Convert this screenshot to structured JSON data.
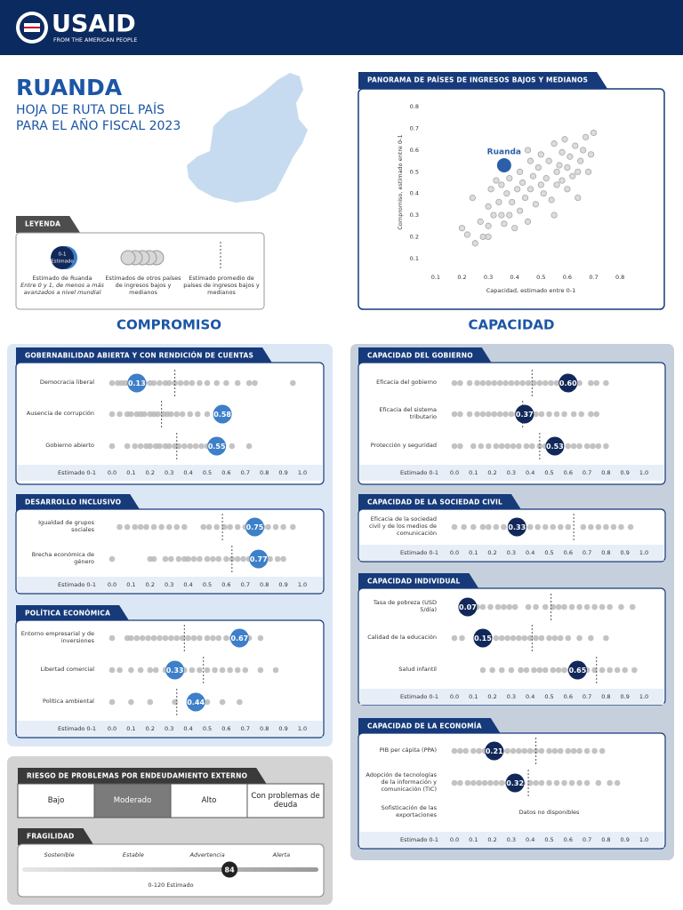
{
  "header": {
    "logo": "USAID",
    "tagline": "FROM THE AMERICAN PEOPLE"
  },
  "title": {
    "country": "RUANDA",
    "line1": "HOJA DE RUTA DEL PAÍS",
    "line2": "PARA EL AÑO FISCAL 2023"
  },
  "legend": {
    "title": "LEYENDA",
    "marker_lines": [
      "0-1",
      "Estimado"
    ],
    "country_caption": "Estimado de Ruanda",
    "country_note": "Entre 0 y 1, de menos a más avanzados a nivel mundial",
    "others_caption": "Estimados de otros países de ingresos bajos y medianos",
    "average_caption": "Estimado promedio de países de ingresos bajos y medianos"
  },
  "sections": {
    "commitment": "COMPROMISO",
    "capacity": "CAPACIDAD"
  },
  "chart_data": [
    {
      "type": "scatter",
      "title": "PANORAMA DE PAÍSES DE INGRESOS BAJOS Y MEDIANOS",
      "x_label": "Capacidad, estimado entre 0-1",
      "y_label": "Compromiso, estimado entre 0-1",
      "xlim": [
        0.07,
        0.83
      ],
      "ylim": [
        0.05,
        0.85
      ],
      "xticks": [
        0.1,
        0.2,
        0.3,
        0.4,
        0.5,
        0.6,
        0.7,
        0.8
      ],
      "yticks": [
        0.1,
        0.2,
        0.3,
        0.4,
        0.5,
        0.6,
        0.7,
        0.8
      ],
      "series": [
        {
          "name": "Ruanda",
          "color": "#2c5fa8",
          "x": [
            0.36
          ],
          "values": [
            0.53
          ]
        },
        {
          "color": "#dcdcdc",
          "x": [
            0.2,
            0.22,
            0.25,
            0.24,
            0.27,
            0.28,
            0.3,
            0.31,
            0.3,
            0.33,
            0.32,
            0.34,
            0.35,
            0.36,
            0.37,
            0.38,
            0.38,
            0.39,
            0.4,
            0.41,
            0.42,
            0.42,
            0.43,
            0.44,
            0.45,
            0.46,
            0.46,
            0.47,
            0.48,
            0.49,
            0.5,
            0.5,
            0.51,
            0.52,
            0.53,
            0.54,
            0.55,
            0.56,
            0.56,
            0.57,
            0.58,
            0.58,
            0.59,
            0.6,
            0.6,
            0.61,
            0.62,
            0.63,
            0.64,
            0.64,
            0.65,
            0.66,
            0.67,
            0.68,
            0.69,
            0.7,
            0.3,
            0.35,
            0.45,
            0.55
          ],
          "values": [
            0.24,
            0.21,
            0.17,
            0.38,
            0.27,
            0.2,
            0.34,
            0.42,
            0.2,
            0.46,
            0.3,
            0.36,
            0.44,
            0.26,
            0.4,
            0.47,
            0.3,
            0.36,
            0.24,
            0.42,
            0.5,
            0.32,
            0.45,
            0.38,
            0.27,
            0.55,
            0.42,
            0.48,
            0.35,
            0.52,
            0.44,
            0.58,
            0.4,
            0.47,
            0.55,
            0.37,
            0.63,
            0.5,
            0.44,
            0.53,
            0.46,
            0.59,
            0.65,
            0.42,
            0.52,
            0.57,
            0.48,
            0.62,
            0.5,
            0.38,
            0.55,
            0.6,
            0.66,
            0.5,
            0.58,
            0.68,
            0.25,
            0.3,
            0.6,
            0.3
          ]
        }
      ]
    },
    {
      "type": "strip",
      "title": "GOBERNABILIDAD ABIERTA Y CON RENDICIÓN DE CUENTAS",
      "color": "#3d7fc8",
      "others_color": "#b8b8b8",
      "axis_label": "Estimado 0-1",
      "xlim": [
        0,
        1
      ],
      "xticks": [
        {
          "value": 0,
          "label": "0.0"
        },
        0.1,
        0.2,
        0.3,
        0.4,
        0.5,
        0.6,
        0.7,
        0.8,
        0.9,
        {
          "value": 1,
          "label": "1.0"
        }
      ],
      "rows": [
        {
          "label": "Democracia liberal",
          "value": 0.13,
          "average": 0.33,
          "others": [
            0.0,
            0.03,
            0.05,
            0.07,
            0.09,
            0.11,
            0.15,
            0.17,
            0.2,
            0.22,
            0.25,
            0.28,
            0.3,
            0.33,
            0.36,
            0.39,
            0.42,
            0.46,
            0.5,
            0.55,
            0.6,
            0.66,
            0.72,
            0.75,
            0.95
          ]
        },
        {
          "label": "Ausencia de corrupción",
          "value": 0.58,
          "average": 0.26,
          "others": [
            0.0,
            0.04,
            0.08,
            0.1,
            0.13,
            0.15,
            0.17,
            0.2,
            0.22,
            0.24,
            0.27,
            0.29,
            0.31,
            0.34,
            0.37,
            0.41,
            0.45,
            0.5,
            0.55
          ]
        },
        {
          "label": "Gobierno abierto",
          "value": 0.55,
          "average": 0.34,
          "others": [
            0.0,
            0.08,
            0.12,
            0.15,
            0.18,
            0.2,
            0.23,
            0.25,
            0.28,
            0.3,
            0.33,
            0.35,
            0.38,
            0.41,
            0.44,
            0.47,
            0.5,
            0.53,
            0.57,
            0.63,
            0.72
          ]
        }
      ]
    },
    {
      "type": "strip",
      "title": "DESARROLLO INCLUSIVO",
      "color": "#3d7fc8",
      "others_color": "#b8b8b8",
      "axis_label": "Estimado 0-1",
      "xlim": [
        0,
        1
      ],
      "xticks": [
        {
          "value": 0,
          "label": "0.0"
        },
        0.1,
        0.2,
        0.3,
        0.4,
        0.5,
        0.6,
        0.7,
        0.8,
        0.9,
        {
          "value": 1,
          "label": "1.0"
        }
      ],
      "rows": [
        {
          "label": "Igualdad de grupos sociales",
          "value": 0.75,
          "average": 0.58,
          "others": [
            0.04,
            0.08,
            0.12,
            0.15,
            0.18,
            0.22,
            0.26,
            0.3,
            0.34,
            0.38,
            0.48,
            0.51,
            0.55,
            0.59,
            0.62,
            0.66,
            0.7,
            0.72,
            0.79,
            0.82,
            0.86,
            0.9,
            0.95
          ]
        },
        {
          "label": "Brecha económica de género",
          "value": 0.77,
          "average": 0.63,
          "others": [
            0.0,
            0.2,
            0.22,
            0.28,
            0.31,
            0.35,
            0.38,
            0.4,
            0.43,
            0.46,
            0.5,
            0.53,
            0.56,
            0.6,
            0.63,
            0.66,
            0.69,
            0.72,
            0.8,
            0.83,
            0.87,
            0.9
          ]
        }
      ]
    },
    {
      "type": "strip",
      "title": "POLÍTICA ECONÓMICA",
      "color": "#3d7fc8",
      "others_color": "#b8b8b8",
      "axis_label": "Estimado 0-1",
      "xlim": [
        0,
        1
      ],
      "xticks": [
        {
          "value": 0,
          "label": "0.0"
        },
        0.1,
        0.2,
        0.3,
        0.4,
        0.5,
        0.6,
        0.7,
        0.8,
        0.9,
        {
          "value": 1,
          "label": "1.0"
        }
      ],
      "rows": [
        {
          "label": "Entorno empresarial y de inversiones",
          "value": 0.67,
          "average": 0.38,
          "others": [
            0.0,
            0.08,
            0.1,
            0.13,
            0.16,
            0.19,
            0.22,
            0.25,
            0.28,
            0.31,
            0.34,
            0.37,
            0.4,
            0.43,
            0.46,
            0.5,
            0.53,
            0.56,
            0.6,
            0.63,
            0.72,
            0.78
          ]
        },
        {
          "label": "Libertad comercial",
          "value": 0.33,
          "average": 0.48,
          "others": [
            0.0,
            0.04,
            0.1,
            0.15,
            0.2,
            0.23,
            0.28,
            0.38,
            0.42,
            0.46,
            0.5,
            0.54,
            0.58,
            0.62,
            0.66,
            0.7,
            0.78,
            0.86
          ]
        },
        {
          "label": "Política ambiental",
          "value": 0.44,
          "average": 0.34,
          "others": [
            0.0,
            0.1,
            0.2,
            0.33,
            0.42,
            0.5,
            0.58,
            0.67
          ]
        }
      ]
    },
    {
      "type": "strip",
      "title": "CAPACIDAD DEL GOBIERNO",
      "color": "#12285a",
      "others_color": "#b8b8b8",
      "axis_label": "Estimado 0-1",
      "xlim": [
        0,
        1
      ],
      "xticks": [
        {
          "value": 0,
          "label": "0.0"
        },
        0.1,
        0.2,
        0.3,
        0.4,
        0.5,
        0.6,
        0.7,
        0.8,
        0.9,
        {
          "value": 1,
          "label": "1.0"
        }
      ],
      "rows": [
        {
          "label": "Eficacia del gobierno",
          "value": 0.6,
          "value_label": "0.60",
          "average": 0.41,
          "others": [
            0.0,
            0.03,
            0.08,
            0.12,
            0.15,
            0.18,
            0.21,
            0.24,
            0.27,
            0.3,
            0.33,
            0.36,
            0.39,
            0.42,
            0.45,
            0.48,
            0.51,
            0.54,
            0.57,
            0.66,
            0.72,
            0.75,
            0.8
          ]
        },
        {
          "label": "Eficacia del sistema tributario",
          "value": 0.37,
          "average": 0.36,
          "others": [
            0.0,
            0.03,
            0.08,
            0.12,
            0.15,
            0.18,
            0.21,
            0.24,
            0.27,
            0.3,
            0.33,
            0.4,
            0.43,
            0.46,
            0.5,
            0.54,
            0.58,
            0.63,
            0.67,
            0.72,
            0.75
          ]
        },
        {
          "label": "Protección y seguridad",
          "value": 0.53,
          "average": 0.45,
          "others": [
            0.0,
            0.03,
            0.1,
            0.14,
            0.18,
            0.22,
            0.25,
            0.28,
            0.31,
            0.34,
            0.38,
            0.41,
            0.45,
            0.48,
            0.5,
            0.56,
            0.6,
            0.63,
            0.66,
            0.7,
            0.73,
            0.76,
            0.8
          ]
        }
      ]
    },
    {
      "type": "strip",
      "title": "CAPACIDAD DE LA SOCIEDAD CIVIL",
      "color": "#12285a",
      "others_color": "#b8b8b8",
      "axis_label": "Estimado 0-1",
      "xlim": [
        0,
        1
      ],
      "xticks": [
        {
          "value": 0,
          "label": "0.0"
        },
        0.1,
        0.2,
        0.3,
        0.4,
        0.5,
        0.6,
        0.7,
        0.8,
        0.9,
        {
          "value": 1,
          "label": "1.0"
        }
      ],
      "rows": [
        {
          "label": "Eficacia de la sociedad civil y de los medios de comunicación",
          "value": 0.33,
          "average": 0.63,
          "others": [
            0.0,
            0.05,
            0.1,
            0.15,
            0.18,
            0.22,
            0.26,
            0.3,
            0.36,
            0.4,
            0.44,
            0.48,
            0.52,
            0.56,
            0.6,
            0.68,
            0.72,
            0.76,
            0.8,
            0.84,
            0.88,
            0.93
          ]
        }
      ]
    },
    {
      "type": "strip",
      "title": "CAPACIDAD INDIVIDUAL",
      "color": "#12285a",
      "others_color": "#b8b8b8",
      "axis_label": "Estimado 0-1",
      "xlim": [
        0,
        1
      ],
      "xticks": [
        {
          "value": 0,
          "label": "0.0"
        },
        0.1,
        0.2,
        0.3,
        0.4,
        0.5,
        0.6,
        0.7,
        0.8,
        0.9,
        {
          "value": 1,
          "label": "1.0"
        }
      ],
      "rows": [
        {
          "label": "Tasa de pobreza (USD 5/día)",
          "value": 0.07,
          "average": 0.51,
          "others": [
            0.12,
            0.15,
            0.19,
            0.23,
            0.26,
            0.29,
            0.32,
            0.39,
            0.43,
            0.48,
            0.52,
            0.55,
            0.58,
            0.62,
            0.66,
            0.7,
            0.74,
            0.78,
            0.82,
            0.88,
            0.94
          ]
        },
        {
          "label": "Calidad de la educación",
          "value": 0.15,
          "average": 0.41,
          "others": [
            0.0,
            0.04,
            0.18,
            0.22,
            0.25,
            0.28,
            0.31,
            0.34,
            0.37,
            0.4,
            0.43,
            0.46,
            0.5,
            0.53,
            0.56,
            0.6,
            0.66,
            0.72,
            0.8
          ]
        },
        {
          "label": "Salud infantil",
          "value": 0.65,
          "average": 0.75,
          "others": [
            0.15,
            0.2,
            0.25,
            0.3,
            0.35,
            0.38,
            0.42,
            0.45,
            0.48,
            0.52,
            0.55,
            0.58,
            0.61,
            0.7,
            0.74,
            0.78,
            0.82,
            0.86,
            0.9,
            0.95
          ]
        }
      ]
    },
    {
      "type": "strip",
      "title": "CAPACIDAD DE LA ECONOMÍA",
      "color": "#12285a",
      "others_color": "#b8b8b8",
      "axis_label": "Estimado 0-1",
      "xlim": [
        0,
        1
      ],
      "xticks": [
        {
          "value": 0,
          "label": "0.0"
        },
        0.1,
        0.2,
        0.3,
        0.4,
        0.5,
        0.6,
        0.7,
        0.8,
        0.9,
        {
          "value": 1,
          "label": "1.0"
        }
      ],
      "rows": [
        {
          "label": "PIB per cápita (PPA)",
          "value": 0.21,
          "average": 0.43,
          "others": [
            0.0,
            0.03,
            0.06,
            0.1,
            0.13,
            0.16,
            0.25,
            0.28,
            0.31,
            0.34,
            0.37,
            0.4,
            0.43,
            0.46,
            0.5,
            0.53,
            0.56,
            0.6,
            0.63,
            0.66,
            0.7,
            0.74,
            0.78
          ]
        },
        {
          "label": "Adopción de tecnologías de la información y comunicación (TIC)",
          "value": 0.32,
          "average": 0.39,
          "others": [
            0.0,
            0.03,
            0.07,
            0.1,
            0.13,
            0.16,
            0.19,
            0.22,
            0.25,
            0.28,
            0.36,
            0.4,
            0.43,
            0.46,
            0.5,
            0.54,
            0.58,
            0.62,
            0.66,
            0.7,
            0.76,
            0.82,
            0.86
          ]
        },
        {
          "label": "Sofisticación de las exportaciones",
          "note": "Datos no disponibles"
        }
      ]
    }
  ],
  "debt_risk": {
    "title": "RIESGO DE PROBLEMAS POR ENDEUDAMIENTO EXTERNO",
    "levels": [
      "Bajo",
      "Moderado",
      "Alto",
      "Con problemas de deuda"
    ],
    "selected_index": 1
  },
  "fragility": {
    "title": "FRAGILIDAD",
    "levels": [
      "Sostenible",
      "Estable",
      "Advertencia",
      "Alerta"
    ],
    "value": 84,
    "range": [
      0,
      120
    ],
    "scale_label": "0-120 Estimado"
  }
}
